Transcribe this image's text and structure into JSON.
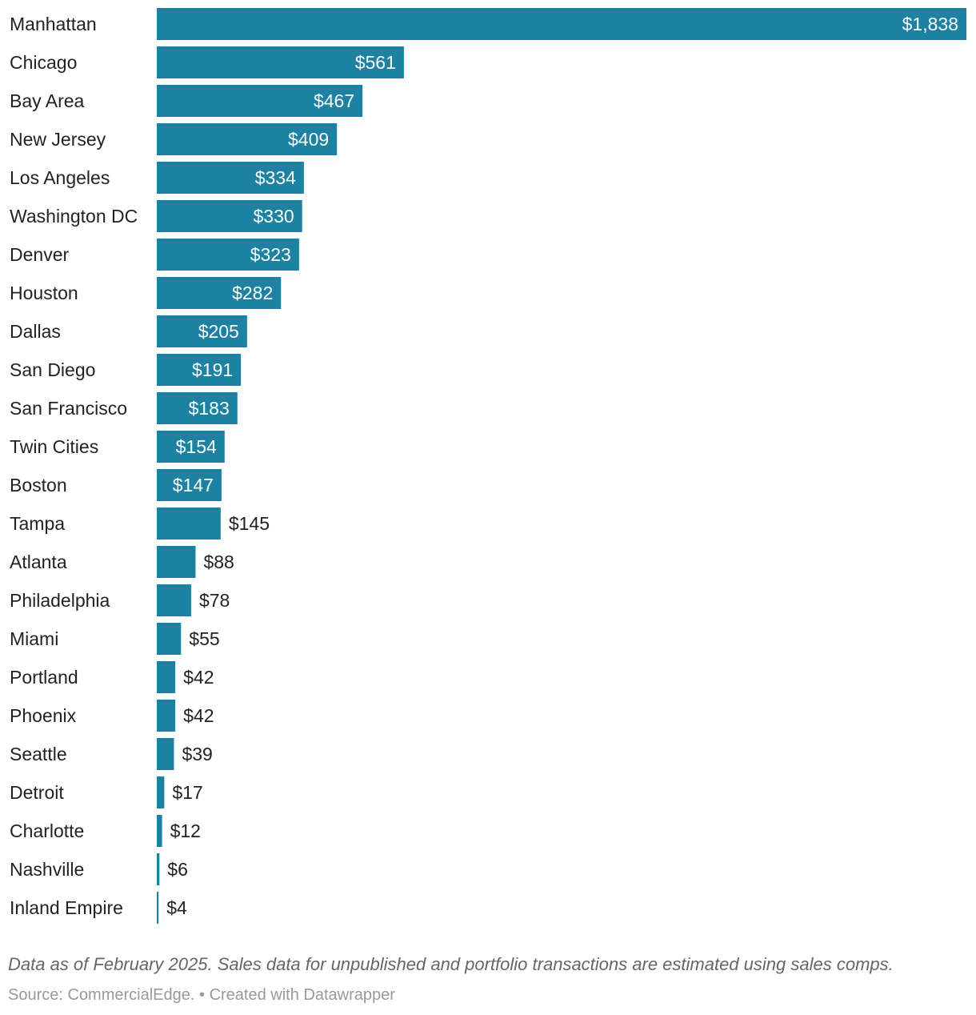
{
  "chart_data": {
    "type": "bar",
    "orientation": "horizontal",
    "categories": [
      "Manhattan",
      "Chicago",
      "Bay Area",
      "New Jersey",
      "Los Angeles",
      "Washington DC",
      "Denver",
      "Houston",
      "Dallas",
      "San Diego",
      "San Francisco",
      "Twin Cities",
      "Boston",
      "Tampa",
      "Atlanta",
      "Philadelphia",
      "Miami",
      "Portland",
      "Phoenix",
      "Seattle",
      "Detroit",
      "Charlotte",
      "Nashville",
      "Inland Empire"
    ],
    "values": [
      1838,
      561,
      467,
      409,
      334,
      330,
      323,
      282,
      205,
      191,
      183,
      154,
      147,
      145,
      88,
      78,
      55,
      42,
      42,
      39,
      17,
      12,
      6,
      4
    ],
    "value_labels": [
      "$1,838",
      "$561",
      "$467",
      "$409",
      "$334",
      "$330",
      "$323",
      "$282",
      "$205",
      "$191",
      "$183",
      "$154",
      "$147",
      "$145",
      "$88",
      "$78",
      "$55",
      "$42",
      "$42",
      "$39",
      "$17",
      "$12",
      "$6",
      "$4"
    ],
    "xlim": [
      0,
      1838
    ],
    "bar_color": "#1d81a2",
    "inside_label_color": "#ffffff",
    "outside_label_color": "#222222",
    "grid": false,
    "legend": "none"
  },
  "notes": "Data as of February 2025. Sales data for unpublished and portfolio transactions are estimated using sales comps.",
  "footer": {
    "source": "Source: CommercialEdge.",
    "separator": " • ",
    "credit": "Created with Datawrapper"
  }
}
